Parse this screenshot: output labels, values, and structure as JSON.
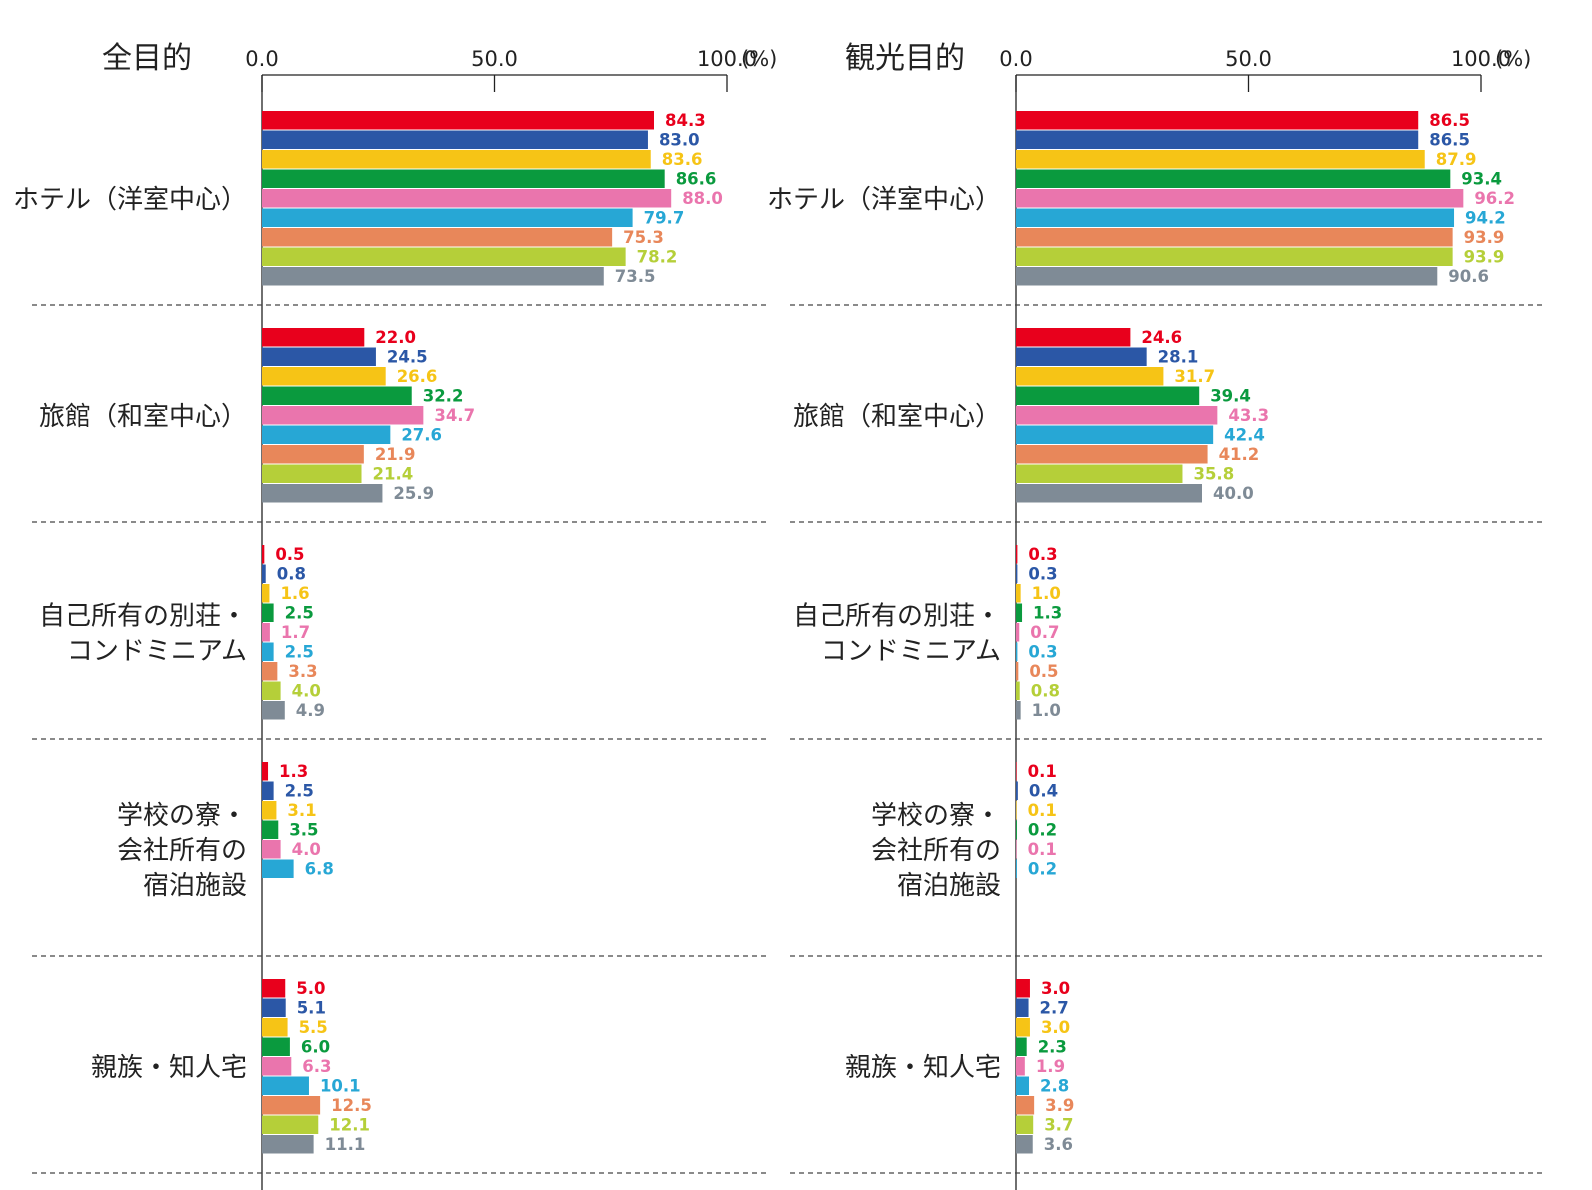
{
  "chart_data": [
    {
      "type": "bar",
      "title": "全目的",
      "unit": "(%)",
      "ticks": [
        "0.0",
        "50.0",
        "100.0"
      ],
      "xlim": [
        0,
        100
      ],
      "categories": [
        [
          "ホテル（洋室中心）"
        ],
        [
          "旅館（和室中心）"
        ],
        [
          "自己所有の別荘・",
          "コンドミニアム"
        ],
        [
          "学校の寮・",
          "会社所有の",
          "宿泊施設"
        ],
        [
          "親族・知人宅"
        ]
      ],
      "series_colors": [
        "#e8001c",
        "#2b57a6",
        "#f6c416",
        "#0a9a3e",
        "#ea75ad",
        "#27a7d5",
        "#e8875a",
        "#b5cf39",
        "#7f8b96"
      ],
      "values": [
        [
          84.3,
          83.0,
          83.6,
          86.6,
          88.0,
          79.7,
          75.3,
          78.2,
          73.5
        ],
        [
          22.0,
          24.5,
          26.6,
          32.2,
          34.7,
          27.6,
          21.9,
          21.4,
          25.9
        ],
        [
          0.5,
          0.8,
          1.6,
          2.5,
          1.7,
          2.5,
          3.3,
          4.0,
          4.9
        ],
        [
          1.3,
          2.5,
          3.1,
          3.5,
          4.0,
          6.8
        ],
        [
          5.0,
          5.1,
          5.5,
          6.0,
          6.3,
          10.1,
          12.5,
          12.1,
          11.1
        ]
      ],
      "labels": [
        [
          "84.3",
          "83.0",
          "83.6",
          "86.6",
          "88.0",
          "79.7",
          "75.3",
          "78.2",
          "73.5"
        ],
        [
          "22.0",
          "24.5",
          "26.6",
          "32.2",
          "34.7",
          "27.6",
          "21.9",
          "21.4",
          "25.9"
        ],
        [
          "0.5",
          "0.8",
          "1.6",
          "2.5",
          "1.7",
          "2.5",
          "3.3",
          "4.0",
          "4.9"
        ],
        [
          "1.3",
          "2.5",
          "3.1",
          "3.5",
          "4.0",
          "6.8"
        ],
        [
          "5.0",
          "5.1",
          "5.5",
          "6.0",
          "6.3",
          "10.1",
          "12.5",
          "12.1",
          "11.1"
        ]
      ]
    },
    {
      "type": "bar",
      "title": "観光目的",
      "unit": "(%)",
      "ticks": [
        "0.0",
        "50.0",
        "100.0"
      ],
      "xlim": [
        0,
        100
      ],
      "categories": [
        [
          "ホテル（洋室中心）"
        ],
        [
          "旅館（和室中心）"
        ],
        [
          "自己所有の別荘・",
          "コンドミニアム"
        ],
        [
          "学校の寮・",
          "会社所有の",
          "宿泊施設"
        ],
        [
          "親族・知人宅"
        ]
      ],
      "series_colors": [
        "#e8001c",
        "#2b57a6",
        "#f6c416",
        "#0a9a3e",
        "#ea75ad",
        "#27a7d5",
        "#e8875a",
        "#b5cf39",
        "#7f8b96"
      ],
      "values": [
        [
          86.5,
          86.5,
          87.9,
          93.4,
          96.2,
          94.2,
          93.9,
          93.9,
          90.6
        ],
        [
          24.6,
          28.1,
          31.7,
          39.4,
          43.3,
          42.4,
          41.2,
          35.8,
          40.0
        ],
        [
          0.3,
          0.3,
          1.0,
          1.3,
          0.7,
          0.3,
          0.5,
          0.8,
          1.0
        ],
        [
          0.1,
          0.4,
          0.1,
          0.2,
          0.1,
          0.2
        ],
        [
          3.0,
          2.7,
          3.0,
          2.3,
          1.9,
          2.8,
          3.9,
          3.7,
          3.6
        ]
      ],
      "labels": [
        [
          "86.5",
          "86.5",
          "87.9",
          "93.4",
          "96.2",
          "94.2",
          "93.9",
          "93.9",
          "90.6"
        ],
        [
          "24.6",
          "28.1",
          "31.7",
          "39.4",
          "43.3",
          "42.4",
          "41.2",
          "35.8",
          "40.0"
        ],
        [
          "0.3",
          "0.3",
          "1.0",
          "1.3",
          "0.7",
          "0.3",
          "0.5",
          "0.8",
          "1.0"
        ],
        [
          "0.1",
          "0.4",
          "0.1",
          "0.2",
          "0.1",
          "0.2"
        ],
        [
          "3.0",
          "2.7",
          "3.0",
          "2.3",
          "1.9",
          "2.8",
          "3.9",
          "3.7",
          "3.6"
        ]
      ]
    }
  ]
}
